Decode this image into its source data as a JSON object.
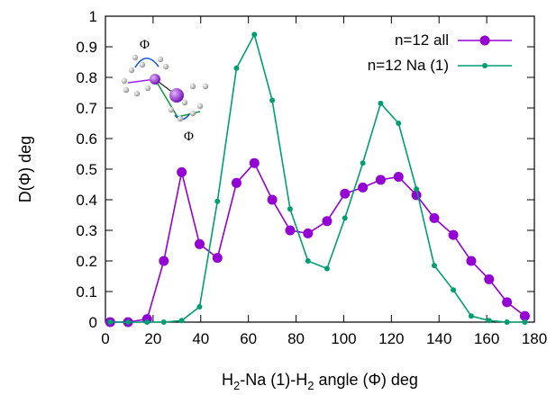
{
  "chart_data": {
    "type": "line",
    "title": "",
    "xlabel": {
      "prefix": "H",
      "sub1": "2",
      "middle": "-Na (1)-H",
      "sub2": "2",
      "suffix": " angle  (Φ) deg"
    },
    "ylabel": "D(Φ) deg",
    "xlim": [
      0,
      180
    ],
    "ylim": [
      0,
      1
    ],
    "xticks": [
      0,
      20,
      40,
      60,
      80,
      100,
      120,
      140,
      160,
      180
    ],
    "yticks": [
      0,
      0.1,
      0.2,
      0.3,
      0.4,
      0.5,
      0.6,
      0.7,
      0.8,
      0.9,
      1
    ],
    "ytick_labels": [
      "0",
      "0.1",
      "0.2",
      "0.3",
      "0.4",
      "0.5",
      "0.6",
      "0.7",
      "0.8",
      "0.9",
      "1"
    ],
    "xtick_labels": [
      "0",
      "20",
      "40",
      "60",
      "80",
      "100",
      "120",
      "140",
      "160",
      "180"
    ],
    "grid": false,
    "legend_position": "top-right",
    "series": [
      {
        "name": "n=12 all",
        "color": "#9400d3",
        "marker": "large-circle",
        "points": [
          [
            2,
            0
          ],
          [
            9.5,
            0
          ],
          [
            17.5,
            0.01
          ],
          [
            24.5,
            0.2
          ],
          [
            32,
            0.49
          ],
          [
            39.5,
            0.255
          ],
          [
            47,
            0.21
          ],
          [
            55,
            0.455
          ],
          [
            62.5,
            0.52
          ],
          [
            70,
            0.4
          ],
          [
            77.5,
            0.3
          ],
          [
            85,
            0.29
          ],
          [
            93,
            0.33
          ],
          [
            100.5,
            0.42
          ],
          [
            108,
            0.44
          ],
          [
            115.5,
            0.465
          ],
          [
            123,
            0.475
          ],
          [
            130.5,
            0.415
          ],
          [
            138,
            0.34
          ],
          [
            146,
            0.285
          ],
          [
            153.5,
            0.2
          ],
          [
            161,
            0.14
          ],
          [
            168.5,
            0.065
          ],
          [
            176,
            0.02
          ]
        ]
      },
      {
        "name": "n=12 Na (1)",
        "color": "#009e73",
        "marker": "small-circle",
        "points": [
          [
            2,
            0
          ],
          [
            9.5,
            0
          ],
          [
            17.5,
            0
          ],
          [
            24.5,
            0
          ],
          [
            32,
            0.005
          ],
          [
            39.5,
            0.05
          ],
          [
            47,
            0.395
          ],
          [
            55,
            0.83
          ],
          [
            62.5,
            0.94
          ],
          [
            70,
            0.725
          ],
          [
            77.5,
            0.37
          ],
          [
            85,
            0.2
          ],
          [
            93,
            0.175
          ],
          [
            100.5,
            0.34
          ],
          [
            108,
            0.52
          ],
          [
            115.5,
            0.715
          ],
          [
            123,
            0.65
          ],
          [
            130.5,
            0.435
          ],
          [
            138,
            0.185
          ],
          [
            146,
            0.105
          ],
          [
            153.5,
            0.02
          ],
          [
            161,
            0.005
          ],
          [
            168.5,
            0
          ],
          [
            176,
            0
          ]
        ]
      }
    ]
  },
  "inset": {
    "phi_label_top": "Φ",
    "phi_label_bottom": "Φ"
  }
}
